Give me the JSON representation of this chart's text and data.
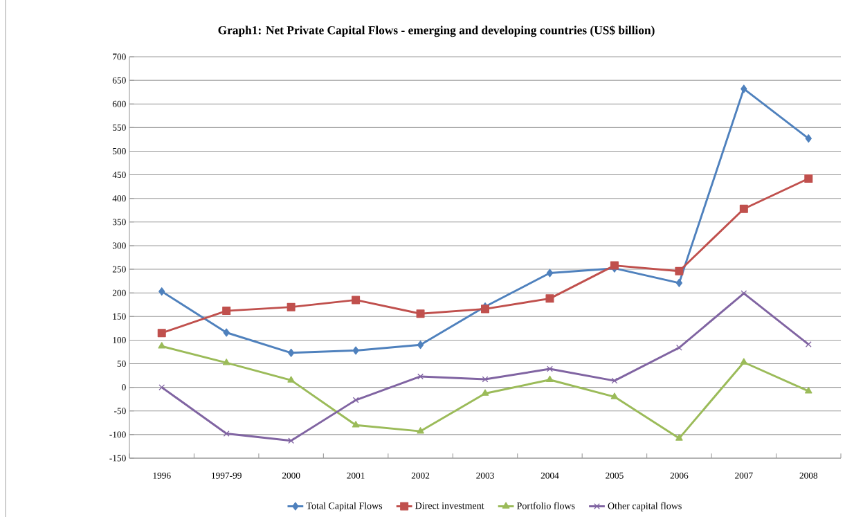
{
  "chart_data": {
    "type": "line",
    "title": "Graph1: Net Private Capital Flows - emerging and developing countries (US$ billion)",
    "categories": [
      "1996",
      "1997-99",
      "2000",
      "2001",
      "2002",
      "2003",
      "2004",
      "2005",
      "2006",
      "2007",
      "2008"
    ],
    "series": [
      {
        "name": "Total Capital Flows",
        "color": "#4f81bd",
        "marker": "diamond",
        "values": [
          203,
          116,
          73,
          78,
          90,
          171,
          242,
          252,
          221,
          632,
          527
        ]
      },
      {
        "name": "Direct investment",
        "color": "#c0504d",
        "marker": "square",
        "values": [
          115,
          162,
          170,
          185,
          156,
          166,
          188,
          258,
          246,
          378,
          442
        ]
      },
      {
        "name": "Portfolio flows",
        "color": "#9bbb59",
        "marker": "triangle",
        "values": [
          87,
          52,
          15,
          -80,
          -93,
          -13,
          16,
          -20,
          -108,
          53,
          -8
        ]
      },
      {
        "name": "Other capital flows",
        "color": "#8064a2",
        "marker": "cross",
        "values": [
          0,
          -98,
          -113,
          -27,
          23,
          17,
          39,
          14,
          84,
          199,
          91
        ]
      }
    ],
    "ylim": [
      -150,
      700
    ],
    "yticks": [
      -150,
      -100,
      -50,
      0,
      50,
      100,
      150,
      200,
      250,
      300,
      350,
      400,
      450,
      500,
      550,
      600,
      650,
      700
    ],
    "grid": "y",
    "legend": "bottom",
    "line_style": "solid"
  }
}
